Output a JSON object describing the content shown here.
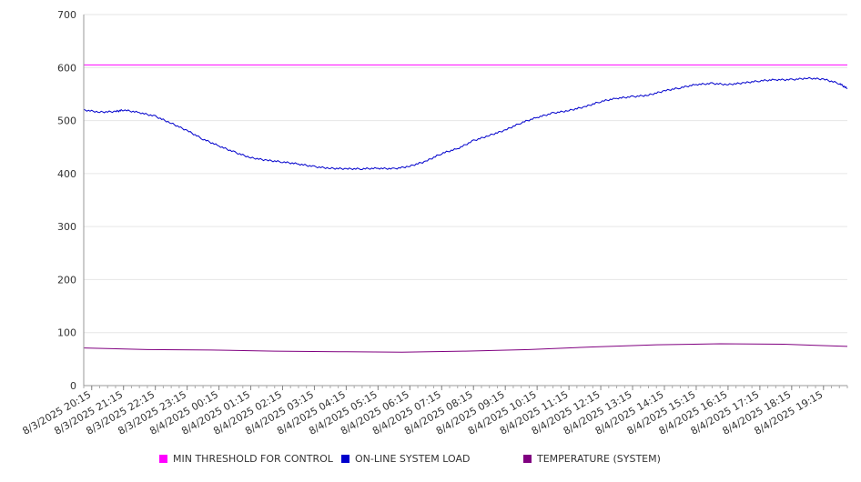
{
  "chart_data": {
    "type": "line",
    "xlabel": "",
    "ylabel": "",
    "ylim": [
      0,
      700
    ],
    "yticks": [
      "0",
      "100",
      "200",
      "300",
      "400",
      "500",
      "600",
      "700"
    ],
    "grid": true,
    "legend_position": "bottom",
    "x_tick_labels": [
      "8/3/2025 20:15",
      "8/3/2025 21:15",
      "8/3/2025 22:15",
      "8/3/2025 23:15",
      "8/4/2025 00:15",
      "8/4/2025 01:15",
      "8/4/2025 02:15",
      "8/4/2025 03:15",
      "8/4/2025 04:15",
      "8/4/2025 05:15",
      "8/4/2025 06:15",
      "8/4/2025 07:15",
      "8/4/2025 08:15",
      "8/4/2025 09:15",
      "8/4/2025 10:15",
      "8/4/2025 11:15",
      "8/4/2025 12:15",
      "8/4/2025 13:15",
      "8/4/2025 14:15",
      "8/4/2025 15:15",
      "8/4/2025 16:15",
      "8/4/2025 17:15",
      "8/4/2025 18:15",
      "8/4/2025 19:15"
    ],
    "x_start": "8/3/2025 20:00",
    "x_end": "8/4/2025 20:00",
    "series": [
      {
        "name": "MIN THRESHOLD FOR CONTROL",
        "color": "#ff00ff",
        "x": [
          "8/3/2025 20:00",
          "8/4/2025 20:00"
        ],
        "values": [
          605,
          605
        ]
      },
      {
        "name": "ON-LINE SYSTEM LOAD",
        "color": "#0000cc",
        "x": [
          "8/3/2025 20:00",
          "8/3/2025 20:30",
          "8/3/2025 21:00",
          "8/3/2025 21:15",
          "8/3/2025 21:45",
          "8/3/2025 22:15",
          "8/3/2025 22:45",
          "8/3/2025 23:15",
          "8/3/2025 23:45",
          "8/4/2025 00:15",
          "8/4/2025 00:45",
          "8/4/2025 01:15",
          "8/4/2025 01:45",
          "8/4/2025 02:15",
          "8/4/2025 02:45",
          "8/4/2025 03:15",
          "8/4/2025 03:45",
          "8/4/2025 04:15",
          "8/4/2025 04:45",
          "8/4/2025 05:15",
          "8/4/2025 05:45",
          "8/4/2025 06:15",
          "8/4/2025 06:45",
          "8/4/2025 07:15",
          "8/4/2025 07:45",
          "8/4/2025 08:15",
          "8/4/2025 08:45",
          "8/4/2025 09:15",
          "8/4/2025 09:45",
          "8/4/2025 10:15",
          "8/4/2025 10:45",
          "8/4/2025 11:15",
          "8/4/2025 11:45",
          "8/4/2025 12:15",
          "8/4/2025 12:45",
          "8/4/2025 13:15",
          "8/4/2025 13:45",
          "8/4/2025 14:15",
          "8/4/2025 14:45",
          "8/4/2025 15:15",
          "8/4/2025 15:45",
          "8/4/2025 16:15",
          "8/4/2025 16:45",
          "8/4/2025 17:15",
          "8/4/2025 17:45",
          "8/4/2025 18:15",
          "8/4/2025 18:45",
          "8/4/2025 19:15",
          "8/4/2025 19:45",
          "8/4/2025 20:00"
        ],
        "values": [
          520,
          516,
          517,
          520,
          515,
          508,
          495,
          481,
          465,
          452,
          440,
          430,
          425,
          422,
          418,
          413,
          410,
          409,
          409,
          410,
          409,
          414,
          423,
          438,
          447,
          462,
          472,
          482,
          496,
          506,
          514,
          519,
          526,
          536,
          542,
          545,
          548,
          556,
          562,
          568,
          570,
          568,
          571,
          575,
          577,
          577,
          580,
          578,
          570,
          560
        ]
      },
      {
        "name": "TEMPERATURE (SYSTEM)",
        "color": "#800080",
        "x": [
          "8/3/2025 20:00",
          "8/3/2025 22:00",
          "8/4/2025 00:00",
          "8/4/2025 02:00",
          "8/4/2025 04:00",
          "8/4/2025 06:00",
          "8/4/2025 08:00",
          "8/4/2025 10:00",
          "8/4/2025 12:00",
          "8/4/2025 14:00",
          "8/4/2025 16:00",
          "8/4/2025 18:00",
          "8/4/2025 20:00"
        ],
        "values": [
          71,
          68,
          67,
          65,
          64,
          63,
          65,
          68,
          73,
          77,
          79,
          78,
          74
        ]
      }
    ]
  }
}
